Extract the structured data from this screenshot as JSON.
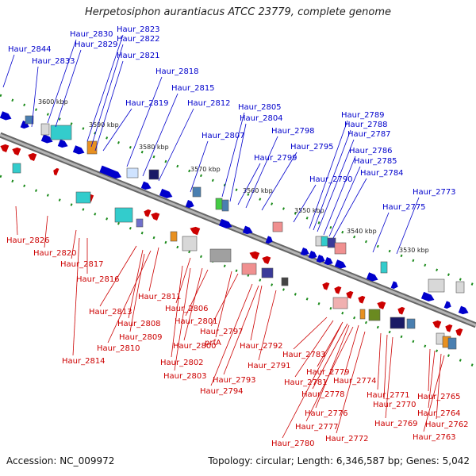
{
  "title": "Herpetosiphon aurantiacus ATCC 23779, complete genome",
  "accession": "Accession: NC_009972",
  "stats": "Topology: circular; Length: 6,346,587 bp; Genes: 5,042",
  "colors": {
    "forward": "#0000cc",
    "reverse": "#cc0000",
    "backbone": "#888888",
    "ticks": "#1a8a1a"
  },
  "position_ticks": [
    "3600 kbp",
    "3590 kbp",
    "3580 kbp",
    "3570 kbp",
    "3560 kbp",
    "3550 kbp",
    "3540 kbp",
    "3530 kbp"
  ],
  "forward_labels": [
    "Haur_2844",
    "Haur_2833",
    "Haur_2830",
    "Haur_2829",
    "Haur_2823",
    "Haur_2822",
    "Haur_2821",
    "Haur_2818",
    "Haur_2815",
    "Haur_2819",
    "Haur_2812",
    "Haur_2805",
    "Haur_2804",
    "Haur_2807",
    "Haur_2798",
    "Haur_2799",
    "Haur_2795",
    "Haur_2789",
    "Haur_2788",
    "Haur_2787",
    "Haur_2786",
    "Haur_2785",
    "Haur_2784",
    "Haur_2790",
    "Haur_2773",
    "Haur_2775"
  ],
  "reverse_labels": [
    "Haur_2826",
    "Haur_2820",
    "Haur_2817",
    "Haur_2816",
    "Haur_2811",
    "Haur_2813",
    "Haur_2806",
    "Haur_2808",
    "Haur_2801",
    "Haur_2809",
    "Haur_2810",
    "Haur_2800",
    "Haur_2797",
    "prfA",
    "Haur_2814",
    "Haur_2802",
    "Haur_2803",
    "Haur_2792",
    "Haur_2791",
    "Haur_2793",
    "Haur_2794",
    "Haur_2783",
    "Haur_2779",
    "Haur_2774",
    "Haur_2781",
    "Haur_2778",
    "Haur_2771",
    "Haur_2776",
    "Haur_2770",
    "Haur_2777",
    "Haur_2769",
    "Haur_2772",
    "Haur_2780",
    "Haur_2765",
    "Haur_2764",
    "Haur_2762",
    "Haur_2763"
  ]
}
